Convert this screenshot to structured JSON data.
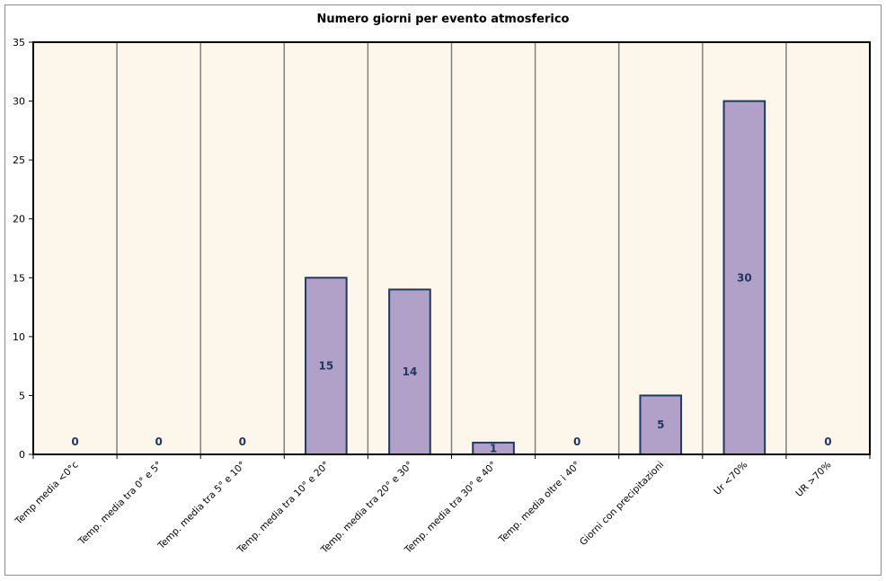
{
  "chart_data": {
    "type": "bar",
    "title": "Numero giorni per evento atmosferico",
    "xlabel": "",
    "ylabel": "",
    "categories": [
      "Temp media <0°c",
      "Temp. media tra 0° e 5°",
      "Temp. media tra 5° e 10°",
      "Temp. media tra 10° e 20°",
      "Temp. media tra 20° e 30°",
      "Temp. media tra 30° e 40°",
      "Temp. media oltre i 40°",
      "Giorni con precipitazioni",
      "Ur <70%",
      "UR >70%"
    ],
    "values": [
      0,
      0,
      0,
      15,
      14,
      1,
      0,
      5,
      30,
      0
    ],
    "ylim": [
      0,
      35
    ],
    "yticks": [
      0,
      5,
      10,
      15,
      20,
      25,
      30,
      35
    ],
    "grid": "vertical",
    "colors": {
      "bar_fill": "#b1a0c7",
      "bar_stroke": "#1f3864",
      "plot_background": "#fdf6ea",
      "grid_line": "#808080",
      "data_label": "#1f3864"
    }
  }
}
